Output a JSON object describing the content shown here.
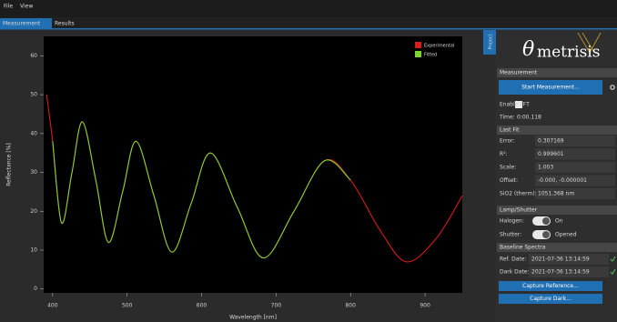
{
  "menu": [
    "File",
    "View"
  ],
  "tabs": [
    "Measurement",
    "Results"
  ],
  "chart_data": {
    "type": "line",
    "x_label": "Wavelength [nm]",
    "y_label": "Reflectance [%]",
    "xlim": [
      388,
      950
    ],
    "ylim": [
      -1,
      65
    ],
    "xticks": [
      400,
      500,
      600,
      700,
      800,
      900
    ],
    "yticks": [
      0,
      10,
      20,
      30,
      40,
      50,
      60
    ],
    "legend": "upper right",
    "series": [
      {
        "name": "Experimental",
        "color": "#d81b1b",
        "x": [
          392,
          400,
          412,
          426,
          440,
          458,
          475,
          494,
          512,
          536,
          560,
          586,
          612,
          648,
          683,
          724,
          765,
          800,
          840,
          875,
          915,
          950
        ],
        "values": [
          50,
          38,
          17,
          30,
          43,
          28,
          12,
          25,
          38,
          24,
          9.5,
          22,
          35,
          21,
          8,
          20,
          33,
          28,
          15,
          7,
          13,
          24
        ]
      },
      {
        "name": "Fitted",
        "color": "#7fd62a",
        "x": [
          400,
          412,
          426,
          440,
          458,
          475,
          494,
          512,
          536,
          560,
          586,
          612,
          648,
          683,
          724,
          765,
          800
        ],
        "values": [
          38,
          17,
          30,
          43,
          28,
          12,
          25,
          38,
          24,
          9.5,
          22,
          35,
          21,
          8,
          20,
          33,
          28
        ]
      }
    ]
  },
  "side_panel": {
    "project_tab": "Project",
    "logo": {
      "symbol": "θ",
      "text": "metrisis"
    },
    "measurement": {
      "title": "Measurement",
      "button": "Start Measurement...",
      "fft_label": "Enable FFT",
      "time_label": "Time:",
      "time_value": "0:00.118"
    },
    "last_fit": {
      "title": "Last Fit",
      "rows": [
        [
          "Error:",
          "0.307169"
        ],
        [
          "R²:",
          "0.999601"
        ],
        [
          "Scale:",
          "1.003"
        ],
        [
          "Offset:",
          "-0.000, -0.000001"
        ],
        [
          "SiO2 (therm):",
          "1051.368 nm"
        ]
      ]
    },
    "lamp": {
      "title": "Lamp/Shutter",
      "rows": [
        [
          "Halogen:",
          "On"
        ],
        [
          "Shutter:",
          "Opened"
        ]
      ]
    },
    "baseline": {
      "title": "Baseline Spectra",
      "rows": [
        [
          "Ref. Date:",
          "2021-07-36 13:14:59"
        ],
        [
          "Dark Date:",
          "2021-07-36 13:14:59"
        ]
      ],
      "buttons": [
        "Capture Reference...",
        "Capture Dark..."
      ]
    }
  }
}
